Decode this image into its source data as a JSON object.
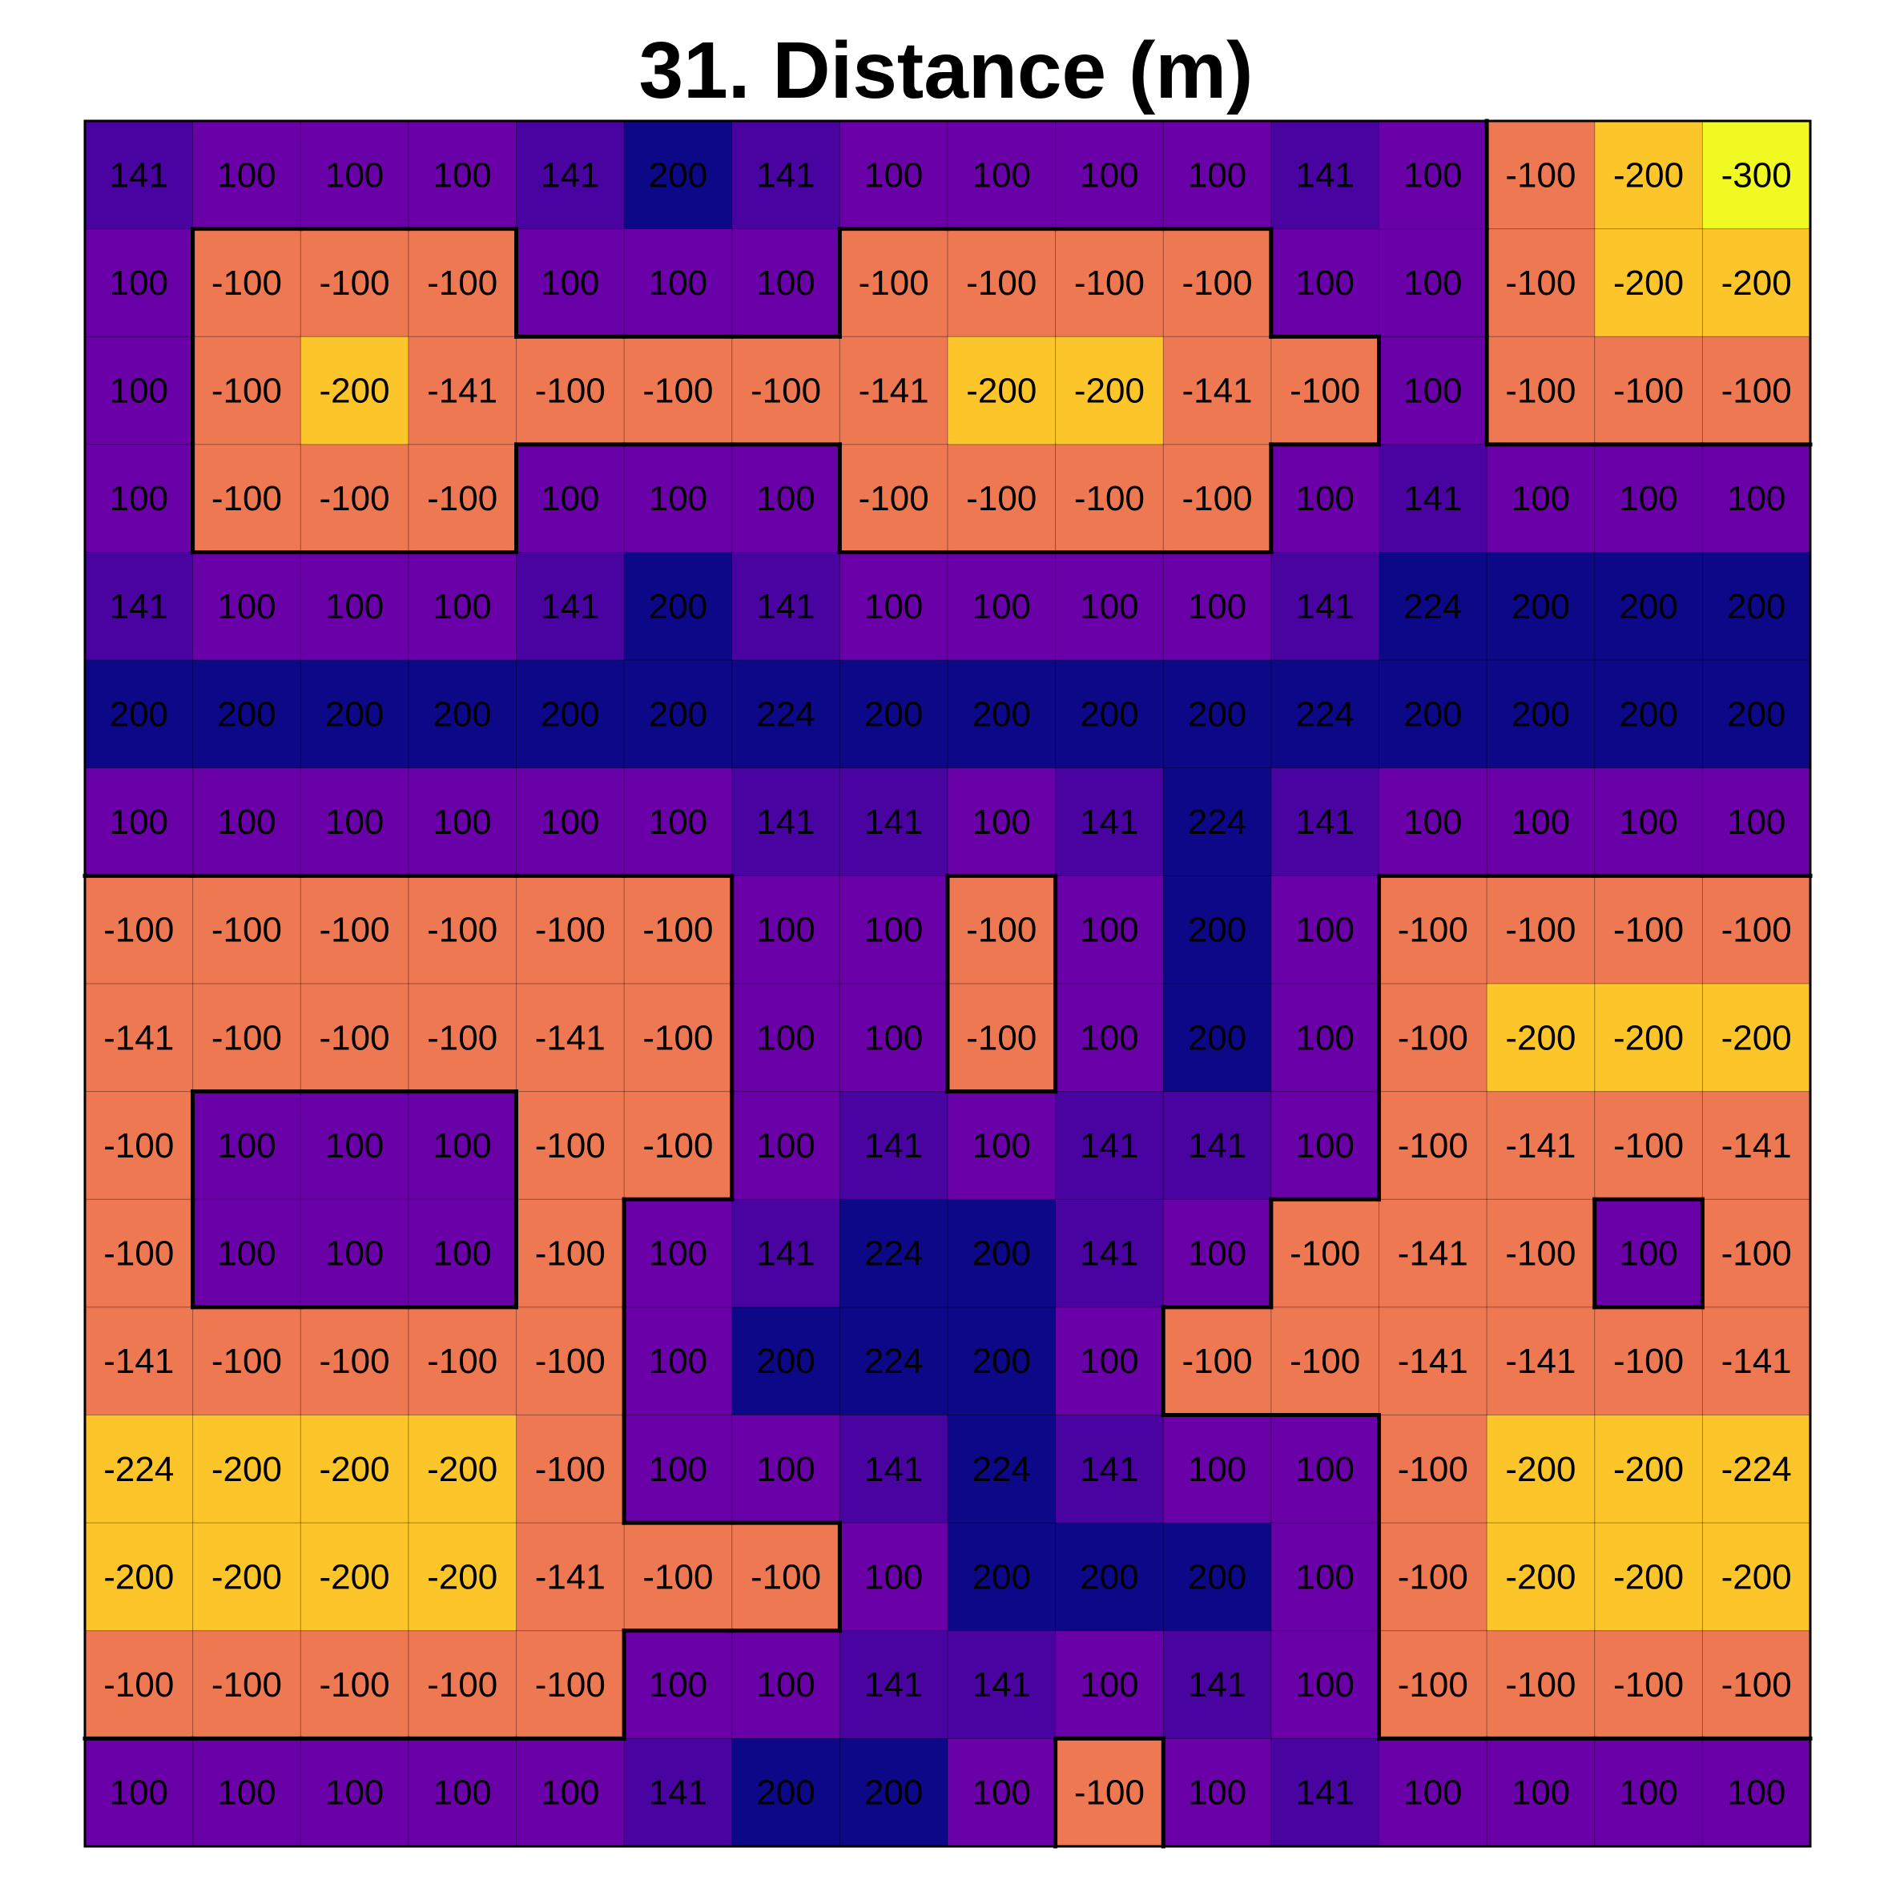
{
  "chart_data": {
    "type": "heatmap",
    "title": "31. Distance  (m)",
    "rows": 16,
    "cols": 16,
    "values": [
      [
        141,
        100,
        100,
        100,
        141,
        200,
        141,
        100,
        100,
        100,
        100,
        141,
        100,
        -100,
        -200,
        -300
      ],
      [
        100,
        -100,
        -100,
        -100,
        100,
        100,
        100,
        -100,
        -100,
        -100,
        -100,
        100,
        100,
        -100,
        -200,
        -200
      ],
      [
        100,
        -100,
        -200,
        -141,
        -100,
        -100,
        -100,
        -141,
        -200,
        -200,
        -141,
        -100,
        100,
        -100,
        -100,
        -100
      ],
      [
        100,
        -100,
        -100,
        -100,
        100,
        100,
        100,
        -100,
        -100,
        -100,
        -100,
        100,
        141,
        100,
        100,
        100
      ],
      [
        141,
        100,
        100,
        100,
        141,
        200,
        141,
        100,
        100,
        100,
        100,
        141,
        224,
        200,
        200,
        200
      ],
      [
        200,
        200,
        200,
        200,
        200,
        200,
        224,
        200,
        200,
        200,
        200,
        224,
        200,
        200,
        200,
        200
      ],
      [
        100,
        100,
        100,
        100,
        100,
        100,
        141,
        141,
        100,
        141,
        224,
        141,
        100,
        100,
        100,
        100
      ],
      [
        -100,
        -100,
        -100,
        -100,
        -100,
        -100,
        100,
        100,
        -100,
        100,
        200,
        100,
        -100,
        -100,
        -100,
        -100
      ],
      [
        -141,
        -100,
        -100,
        -100,
        -141,
        -100,
        100,
        100,
        -100,
        100,
        200,
        100,
        -100,
        -200,
        -200,
        -200
      ],
      [
        -100,
        100,
        100,
        100,
        -100,
        -100,
        100,
        141,
        100,
        141,
        141,
        100,
        -100,
        -141,
        -100,
        -141
      ],
      [
        -100,
        100,
        100,
        100,
        -100,
        100,
        141,
        224,
        200,
        141,
        100,
        -100,
        -141,
        -100,
        100,
        -100
      ],
      [
        -141,
        -100,
        -100,
        -100,
        -100,
        100,
        200,
        224,
        200,
        100,
        -100,
        -100,
        -141,
        -141,
        -100,
        -141
      ],
      [
        -224,
        -200,
        -200,
        -200,
        -100,
        100,
        100,
        141,
        224,
        141,
        100,
        100,
        -100,
        -200,
        -200,
        -224
      ],
      [
        -200,
        -200,
        -200,
        -200,
        -141,
        -100,
        -100,
        100,
        200,
        200,
        200,
        100,
        -100,
        -200,
        -200,
        -200
      ],
      [
        -100,
        -100,
        -100,
        -100,
        -100,
        100,
        100,
        141,
        141,
        100,
        141,
        100,
        -100,
        -100,
        -100,
        -100
      ],
      [
        100,
        100,
        100,
        100,
        100,
        141,
        200,
        200,
        100,
        -100,
        100,
        141,
        100,
        100,
        100,
        100
      ]
    ],
    "colormap": "plasma",
    "color_scale": {
      "-300": "#f0f921",
      "-224": "#fcc52a",
      "-200": "#fcc52a",
      "-141": "#ee7852",
      "-100": "#ee7852",
      "100": "#6a00a8",
      "141": "#4903a0",
      "200": "#0d0887",
      "224": "#0d0887"
    },
    "contour": "boundary between negative and positive cells",
    "grid": true
  }
}
